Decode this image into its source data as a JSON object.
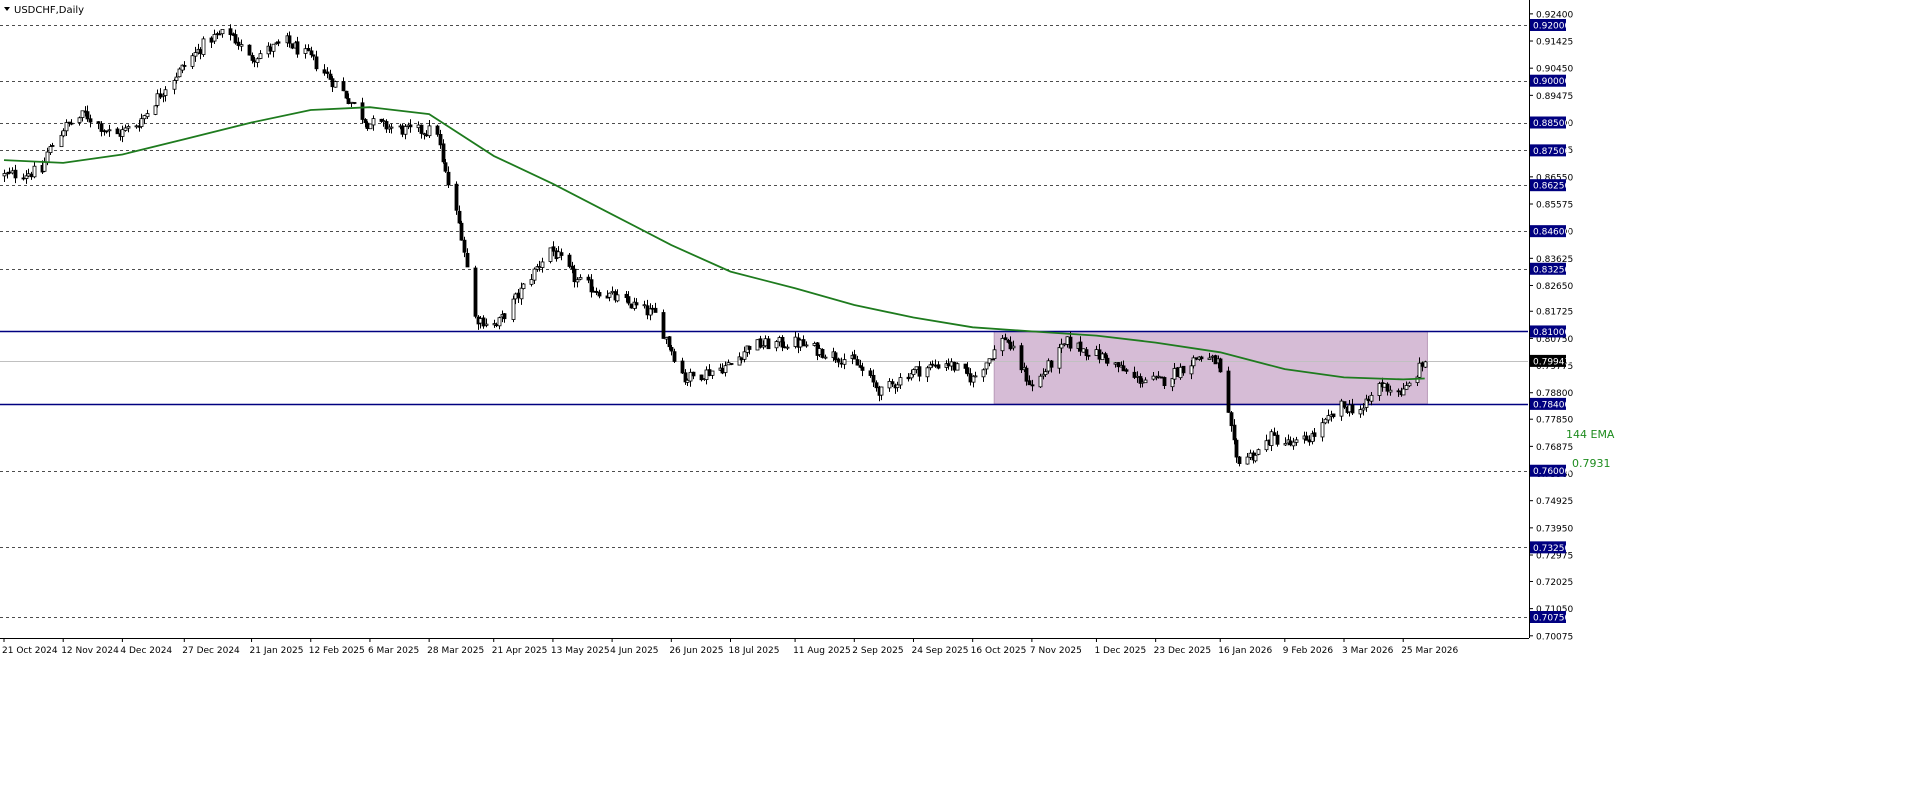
{
  "window": {
    "title": "USDCHF,Daily",
    "menu_icon": "triangle-down-icon"
  },
  "colors": {
    "background": "#ffffff",
    "candle_up": "#ffffff",
    "candle_down": "#000000",
    "candle_outline": "#000000",
    "grid_dashed": "#4d4d4d",
    "level_line": "#000080",
    "ema_line": "#1e7b1e",
    "zone_fill": "#d6bcd6",
    "zone_border": "#b89bb8",
    "price_tag_bg": "#000080",
    "price_tag_text": "#ffffff",
    "current_tag_bg": "#000000",
    "current_line": "#c0c0c0",
    "label_green": "#1e8c1e"
  },
  "chart_data": {
    "type": "candlestick",
    "symbol": "USDCHF",
    "timeframe": "Daily",
    "ylim": [
      0.7045,
      0.9265
    ],
    "x_range": [
      "2024-10-21",
      "2026-04-27"
    ],
    "y_ticks": [
      "0.92400",
      "0.91425",
      "0.90450",
      "0.89475",
      "0.88500",
      "0.87525",
      "0.86550",
      "0.85575",
      "0.84600",
      "0.83625",
      "0.82650",
      "0.81725",
      "0.80750",
      "0.79775",
      "0.78800",
      "0.77850",
      "0.76875",
      "0.75900",
      "0.74925",
      "0.73950",
      "0.72975",
      "0.72025",
      "0.71050",
      "0.70075"
    ],
    "x_ticks": [
      {
        "date": "2024-10-21",
        "label": "21 Oct 2024"
      },
      {
        "date": "2024-11-12",
        "label": "12 Nov 2024"
      },
      {
        "date": "2024-12-04",
        "label": "4 Dec 2024"
      },
      {
        "date": "2024-12-27",
        "label": "27 Dec 2024"
      },
      {
        "date": "2025-01-21",
        "label": "21 Jan 2025"
      },
      {
        "date": "2025-02-12",
        "label": "12 Feb 2025"
      },
      {
        "date": "2025-03-06",
        "label": "6 Mar 2025"
      },
      {
        "date": "2025-03-28",
        "label": "28 Mar 2025"
      },
      {
        "date": "2025-04-21",
        "label": "21 Apr 2025"
      },
      {
        "date": "2025-05-13",
        "label": "13 May 2025"
      },
      {
        "date": "2025-06-04",
        "label": "4 Jun 2025"
      },
      {
        "date": "2025-06-26",
        "label": "26 Jun 2025"
      },
      {
        "date": "2025-07-18",
        "label": "18 Jul 2025"
      },
      {
        "date": "2025-08-11",
        "label": "11 Aug 2025"
      },
      {
        "date": "2025-09-02",
        "label": "2 Sep 2025"
      },
      {
        "date": "2025-09-24",
        "label": "24 Sep 2025"
      },
      {
        "date": "2025-10-16",
        "label": "16 Oct 2025"
      },
      {
        "date": "2025-11-07",
        "label": "7 Nov 2025"
      },
      {
        "date": "2025-12-01",
        "label": "1 Dec 2025"
      },
      {
        "date": "2025-12-23",
        "label": "23 Dec 2025"
      },
      {
        "date": "2026-01-16",
        "label": "16 Jan 2026"
      },
      {
        "date": "2026-02-09",
        "label": "9 Feb 2026"
      },
      {
        "date": "2026-03-03",
        "label": "3 Mar 2026"
      },
      {
        "date": "2026-03-25",
        "label": "25 Mar 2026"
      }
    ],
    "levels_dashed": [
      {
        "value": 0.92,
        "label": "0.92000"
      },
      {
        "value": 0.9,
        "label": "0.90000"
      },
      {
        "value": 0.885,
        "label": "0.88500"
      },
      {
        "value": 0.875,
        "label": "0.87500"
      },
      {
        "value": 0.8625,
        "label": "0.86250"
      },
      {
        "value": 0.846,
        "label": "0.84600"
      },
      {
        "value": 0.8325,
        "label": "0.83250"
      },
      {
        "value": 0.76,
        "label": "0.76000"
      },
      {
        "value": 0.7325,
        "label": "0.73250"
      },
      {
        "value": 0.7075,
        "label": "0.70750"
      }
    ],
    "levels_solid": [
      {
        "value": 0.81,
        "label": "0.81000"
      },
      {
        "value": 0.784,
        "label": "0.78400"
      }
    ],
    "current_price": {
      "value": 0.79943,
      "label": "0.79943"
    },
    "zone": {
      "start": "2025-10-24",
      "end": "2026-04-03",
      "top": 0.81,
      "bottom": 0.784
    },
    "ema": {
      "label": "144 EMA",
      "value_label": "0.7931",
      "points": [
        [
          "2024-10-21",
          0.8715
        ],
        [
          "2024-11-12",
          0.8705
        ],
        [
          "2024-12-04",
          0.8735
        ],
        [
          "2024-12-27",
          0.879
        ],
        [
          "2025-01-21",
          0.885
        ],
        [
          "2025-02-12",
          0.8895
        ],
        [
          "2025-03-06",
          0.8905
        ],
        [
          "2025-03-28",
          0.888
        ],
        [
          "2025-04-21",
          0.873
        ],
        [
          "2025-05-13",
          0.863
        ],
        [
          "2025-06-04",
          0.852
        ],
        [
          "2025-06-26",
          0.841
        ],
        [
          "2025-07-18",
          0.8315
        ],
        [
          "2025-08-11",
          0.8255
        ],
        [
          "2025-09-02",
          0.8195
        ],
        [
          "2025-09-24",
          0.815
        ],
        [
          "2025-10-16",
          0.8115
        ],
        [
          "2025-11-07",
          0.81
        ],
        [
          "2025-12-01",
          0.8085
        ],
        [
          "2025-12-23",
          0.806
        ],
        [
          "2026-01-16",
          0.8025
        ],
        [
          "2026-02-09",
          0.7965
        ],
        [
          "2026-03-03",
          0.7935
        ],
        [
          "2026-03-25",
          0.7928
        ],
        [
          "2026-04-02",
          0.7931
        ]
      ]
    },
    "close_path": [
      [
        "2024-10-21",
        0.866
      ],
      [
        "2024-11-04",
        0.8675
      ],
      [
        "2024-11-06",
        0.874
      ],
      [
        "2024-11-12",
        0.883
      ],
      [
        "2024-11-20",
        0.888
      ],
      [
        "2024-12-01",
        0.88
      ],
      [
        "2024-12-10",
        0.885
      ],
      [
        "2024-12-20",
        0.898
      ],
      [
        "2025-01-05",
        0.915
      ],
      [
        "2025-01-13",
        0.9175
      ],
      [
        "2025-01-20",
        0.908
      ],
      [
        "2025-02-03",
        0.914
      ],
      [
        "2025-02-12",
        0.908
      ],
      [
        "2025-02-24",
        0.896
      ],
      [
        "2025-03-05",
        0.885
      ],
      [
        "2025-03-20",
        0.882
      ],
      [
        "2025-03-31",
        0.882
      ],
      [
        "2025-04-02",
        0.87
      ],
      [
        "2025-04-09",
        0.845
      ],
      [
        "2025-04-14",
        0.815
      ],
      [
        "2025-04-22",
        0.812
      ],
      [
        "2025-05-05",
        0.83
      ],
      [
        "2025-05-12",
        0.84
      ],
      [
        "2025-05-22",
        0.828
      ],
      [
        "2025-06-05",
        0.822
      ],
      [
        "2025-06-20",
        0.816
      ],
      [
        "2025-07-01",
        0.793
      ],
      [
        "2025-07-18",
        0.798
      ],
      [
        "2025-07-25",
        0.805
      ],
      [
        "2025-08-11",
        0.806
      ],
      [
        "2025-09-02",
        0.799
      ],
      [
        "2025-09-12",
        0.788
      ],
      [
        "2025-09-22",
        0.795
      ],
      [
        "2025-10-06",
        0.799
      ],
      [
        "2025-10-16",
        0.793
      ],
      [
        "2025-10-28",
        0.808
      ],
      [
        "2025-11-07",
        0.79
      ],
      [
        "2025-11-20",
        0.806
      ],
      [
        "2025-12-05",
        0.8
      ],
      [
        "2025-12-15",
        0.793
      ],
      [
        "2025-12-25",
        0.792
      ],
      [
        "2026-01-08",
        0.801
      ],
      [
        "2026-01-15",
        0.799
      ],
      [
        "2026-01-22",
        0.764
      ],
      [
        "2026-01-29",
        0.766
      ],
      [
        "2026-02-04",
        0.772
      ],
      [
        "2026-02-12",
        0.769
      ],
      [
        "2026-02-20",
        0.773
      ],
      [
        "2026-03-02",
        0.783
      ],
      [
        "2026-03-10",
        0.782
      ],
      [
        "2026-03-16",
        0.791
      ],
      [
        "2026-03-25",
        0.788
      ],
      [
        "2026-04-02",
        0.7994
      ]
    ]
  }
}
